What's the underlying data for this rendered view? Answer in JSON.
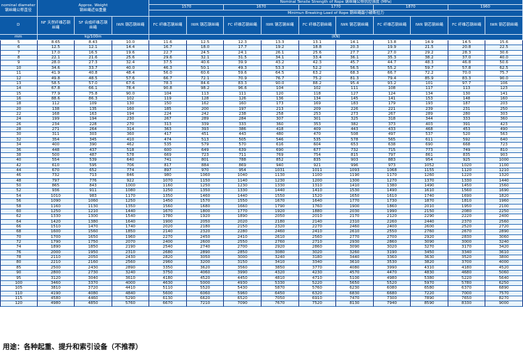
{
  "header": {
    "nominal_diameter_en": "nominal diameter",
    "nominal_diameter_cn": "钢丝绳公称直径",
    "approx_weight_en": "Approx. Weight",
    "approx_weight_cn": "钢丝绳近似重量",
    "tensile_strength": "Nominal Tensile Strength of Rope 钢丝绳公称抗拉强度 (MPa)",
    "grades": [
      "1570",
      "1670",
      "1770",
      "1870",
      "1960"
    ],
    "min_breaking_load": "Minimun Breaking Load of Rope 钢丝绳最小破断拉力",
    "col_d": "D",
    "col_nf": "NF 天然纤维芯钢丝绳",
    "col_sf": "SF 合成纤维芯钢丝绳",
    "col_iwr": "IWR 钢芯钢丝绳",
    "col_fc": "FC 纤维芯钢丝绳",
    "unit_mm": "mm",
    "unit_weight": "kg/100m",
    "unit_load": "(KN)"
  },
  "colors": {
    "header_bg": "#0c5aa8",
    "row_alt": "#e9f4fb",
    "grid": "#0b2b7e"
  },
  "rows": [
    [
      "5",
      "8.65",
      "8.43",
      "10.0",
      "11.6",
      "12.5",
      "12.3",
      "13.3",
      "13.1",
      "14.1",
      "13.8",
      "14.9",
      "14.5",
      "15.6"
    ],
    [
      "6",
      "12.5",
      "12.1",
      "14.4",
      "16.7",
      "18.0",
      "17.7",
      "19.2",
      "18.8",
      "20.3",
      "19.9",
      "21.5",
      "20.8",
      "22.5"
    ],
    [
      "7",
      "17.0",
      "16.5",
      "19.6",
      "22.7",
      "24.5",
      "24.1",
      "26.1",
      "25.6",
      "27.7",
      "27.0",
      "29.2",
      "28.3",
      "30.6"
    ],
    [
      "8",
      "22.1",
      "21.6",
      "25.6",
      "29.6",
      "32.1",
      "31.5",
      "34.1",
      "33.4",
      "36.1",
      "35.3",
      "38.2",
      "37.0",
      "40.0"
    ],
    [
      "9",
      "28.0",
      "27.3",
      "32.4",
      "37.5",
      "40.6",
      "39.9",
      "43.2",
      "42.3",
      "45.7",
      "44.7",
      "48.3",
      "46.8",
      "50.6"
    ],
    [
      "10",
      "34.6",
      "33.7",
      "40.0",
      "46.3",
      "50.1",
      "49.3",
      "53.3",
      "52.2",
      "56.5",
      "55.2",
      "59.7",
      "57.8",
      "62.5"
    ],
    [
      "11",
      "41.9",
      "40.8",
      "48.4",
      "56.0",
      "60.6",
      "59.6",
      "64.5",
      "63.2",
      "68.3",
      "66.7",
      "72.2",
      "70.0",
      "75.7"
    ],
    [
      "12",
      "49.8",
      "48.5",
      "57.6",
      "66.7",
      "72.1",
      "70.9",
      "76.7",
      "75.2",
      "81.3",
      "79.4",
      "85.9",
      "83.3",
      "90.0"
    ],
    [
      "13",
      "58.5",
      "57.0",
      "67.6",
      "78.3",
      "84.6",
      "83.3",
      "90.0",
      "88.2",
      "95.4",
      "93.2",
      "101",
      "97.7",
      "106"
    ],
    [
      "14",
      "67.8",
      "66.1",
      "78.4",
      "90.8",
      "98.2",
      "96.6",
      "104",
      "102",
      "111",
      "108",
      "117",
      "113",
      "123"
    ],
    [
      "15",
      "77.9",
      "75.8",
      "90.0",
      "104",
      "113",
      "111",
      "120",
      "118",
      "127",
      "124",
      "134",
      "130",
      "141"
    ],
    [
      "16",
      "88.6",
      "86.3",
      "102",
      "119",
      "128",
      "126",
      "136",
      "134",
      "145",
      "141",
      "153",
      "148",
      "160"
    ],
    [
      "18",
      "112",
      "109",
      "130",
      "150",
      "162",
      "160",
      "173",
      "169",
      "183",
      "179",
      "193",
      "187",
      "203"
    ],
    [
      "20",
      "138",
      "135",
      "160",
      "185",
      "200",
      "197",
      "213",
      "209",
      "226",
      "221",
      "239",
      "231",
      "250"
    ],
    [
      "22",
      "168",
      "163",
      "194",
      "224",
      "242",
      "238",
      "258",
      "253",
      "273",
      "267",
      "289",
      "280",
      "303"
    ],
    [
      "24",
      "199",
      "194",
      "230",
      "267",
      "289",
      "284",
      "307",
      "301",
      "325",
      "318",
      "344",
      "333",
      "360"
    ],
    [
      "26",
      "234",
      "228",
      "270",
      "313",
      "339",
      "333",
      "360",
      "353",
      "382",
      "373",
      "403",
      "391",
      "423"
    ],
    [
      "28",
      "271",
      "264",
      "314",
      "363",
      "393",
      "386",
      "418",
      "409",
      "443",
      "433",
      "468",
      "453",
      "490"
    ],
    [
      "30",
      "311",
      "303",
      "360",
      "417",
      "451",
      "443",
      "480",
      "470",
      "508",
      "497",
      "537",
      "520",
      "563"
    ],
    [
      "32",
      "354",
      "345",
      "410",
      "474",
      "513",
      "505",
      "546",
      "535",
      "578",
      "565",
      "611",
      "592",
      "640"
    ],
    [
      "34",
      "400",
      "390",
      "462",
      "535",
      "579",
      "570",
      "616",
      "604",
      "653",
      "638",
      "690",
      "668",
      "723"
    ],
    [
      "36",
      "448",
      "437",
      "518",
      "600",
      "649",
      "639",
      "690",
      "677",
      "732",
      "715",
      "773",
      "749",
      "810"
    ],
    [
      "38",
      "500",
      "487",
      "578",
      "669",
      "723",
      "711",
      "769",
      "754",
      "815",
      "797",
      "861",
      "835",
      "903"
    ],
    [
      "40",
      "554",
      "539",
      "640",
      "741",
      "801",
      "788",
      "852",
      "835",
      "903",
      "883",
      "954",
      "925",
      "1000"
    ],
    [
      "42",
      "610",
      "595",
      "706",
      "817",
      "884",
      "869",
      "940",
      "921",
      "996",
      "973",
      "1052",
      "1020",
      "1100"
    ],
    [
      "44",
      "670",
      "652",
      "774",
      "897",
      "970",
      "954",
      "1031",
      "1011",
      "1093",
      "1068",
      "1155",
      "1120",
      "1210"
    ],
    [
      "46",
      "732",
      "713",
      "846",
      "980",
      "1060",
      "1040",
      "1130",
      "1100",
      "1190",
      "1170",
      "1260",
      "1220",
      "1320"
    ],
    [
      "48",
      "797",
      "776",
      "922",
      "1070",
      "1150",
      "1140",
      "1230",
      "1200",
      "1300",
      "1270",
      "1370",
      "1330",
      "1440"
    ],
    [
      "50",
      "865",
      "843",
      "1000",
      "1160",
      "1250",
      "1230",
      "1330",
      "1310",
      "1410",
      "1380",
      "1490",
      "1450",
      "1560"
    ],
    [
      "52",
      "936",
      "911",
      "1080",
      "1250",
      "1350",
      "1330",
      "1440",
      "1410",
      "1530",
      "1490",
      "1610",
      "1560",
      "1690"
    ],
    [
      "54",
      "1010",
      "983",
      "1170",
      "1350",
      "1460",
      "1440",
      "1550",
      "1520",
      "1650",
      "1610",
      "1740",
      "1690",
      "1820"
    ],
    [
      "56",
      "1090",
      "1060",
      "1250",
      "1450",
      "1570",
      "1550",
      "1670",
      "1640",
      "1770",
      "1730",
      "1870",
      "1810",
      "1960"
    ],
    [
      "58",
      "1160",
      "1130",
      "1350",
      "1560",
      "1680",
      "1660",
      "1790",
      "1760",
      "1900",
      "1860",
      "2010",
      "1950",
      "2100"
    ],
    [
      "60",
      "1250",
      "1210",
      "1440",
      "1670",
      "1800",
      "1770",
      "1920",
      "1880",
      "2030",
      "1990",
      "2150",
      "2080",
      "2250"
    ],
    [
      "62",
      "1330",
      "1300",
      "1540",
      "1780",
      "1920",
      "1890",
      "2050",
      "2010",
      "2170",
      "2120",
      "2290",
      "2220",
      "2400"
    ],
    [
      "64",
      "1420",
      "1380",
      "1640",
      "1900",
      "2050",
      "2020",
      "2180",
      "2140",
      "2310",
      "2260",
      "2440",
      "2370",
      "2560"
    ],
    [
      "66",
      "1510",
      "1470",
      "1740",
      "2020",
      "2180",
      "2150",
      "2320",
      "2270",
      "2460",
      "2400",
      "2600",
      "2520",
      "2720"
    ],
    [
      "68",
      "1600",
      "1560",
      "1850",
      "2140",
      "2320",
      "2280",
      "2460",
      "2410",
      "2610",
      "2550",
      "2760",
      "2670",
      "2890"
    ],
    [
      "70",
      "1700",
      "1650",
      "1960",
      "2270",
      "2450",
      "2410",
      "2610",
      "2560",
      "2770",
      "2700",
      "2920",
      "2830",
      "3060"
    ],
    [
      "72",
      "1790",
      "1750",
      "2070",
      "2400",
      "2600",
      "2550",
      "2760",
      "2710",
      "2930",
      "2860",
      "3090",
      "3000",
      "3240"
    ],
    [
      "74",
      "1890",
      "1850",
      "2190",
      "2540",
      "2740",
      "2700",
      "2920",
      "2860",
      "3090",
      "3020",
      "3270",
      "3170",
      "3420"
    ],
    [
      "76",
      "2000",
      "1950",
      "2310",
      "2680",
      "2890",
      "2850",
      "3080",
      "3020",
      "3260",
      "3190",
      "3450",
      "3340",
      "3610"
    ],
    [
      "78",
      "2110",
      "2050",
      "2430",
      "2820",
      "3050",
      "3000",
      "3240",
      "3180",
      "3440",
      "3360",
      "3630",
      "3520",
      "3800"
    ],
    [
      "80",
      "2210",
      "2160",
      "2560",
      "2960",
      "3200",
      "3150",
      "3410",
      "3340",
      "3610",
      "3530",
      "3820",
      "3700",
      "4000"
    ],
    [
      "85",
      "2500",
      "2430",
      "2890",
      "3350",
      "3620",
      "3560",
      "3850",
      "3770",
      "4080",
      "3990",
      "4310",
      "4180",
      "4520"
    ],
    [
      "90",
      "2800",
      "2730",
      "3240",
      "3750",
      "4060",
      "3990",
      "4320",
      "4230",
      "4570",
      "4470",
      "4830",
      "4680",
      "5060"
    ],
    [
      "95",
      "3120",
      "3040",
      "3610",
      "4180",
      "4520",
      "4450",
      "4810",
      "4710",
      "5100",
      "4980",
      "5380",
      "5220",
      "5640"
    ],
    [
      "100",
      "3460",
      "3370",
      "4000",
      "4630",
      "5000",
      "4930",
      "5330",
      "5220",
      "5650",
      "5520",
      "5970",
      "5780",
      "6250"
    ],
    [
      "105",
      "3810",
      "3720",
      "4410",
      "5110",
      "5520",
      "5430",
      "5870",
      "5760",
      "6230",
      "6080",
      "6580",
      "6370",
      "6890"
    ],
    [
      "110",
      "4190",
      "4080",
      "4840",
      "5600",
      "6060",
      "5960",
      "6450",
      "6320",
      "6830",
      "6680",
      "7220",
      "7000",
      "7570"
    ],
    [
      "115",
      "4580",
      "4460",
      "5290",
      "6130",
      "6620",
      "6520",
      "7050",
      "6910",
      "7470",
      "7300",
      "7890",
      "7650",
      "8270"
    ],
    [
      "120",
      "4980",
      "4850",
      "5760",
      "6670",
      "7210",
      "7090",
      "7670",
      "7520",
      "8130",
      "7940",
      "8590",
      "8330",
      "9000"
    ]
  ],
  "footer": "用途：各种起重、提升和索引设备（不推荐）"
}
